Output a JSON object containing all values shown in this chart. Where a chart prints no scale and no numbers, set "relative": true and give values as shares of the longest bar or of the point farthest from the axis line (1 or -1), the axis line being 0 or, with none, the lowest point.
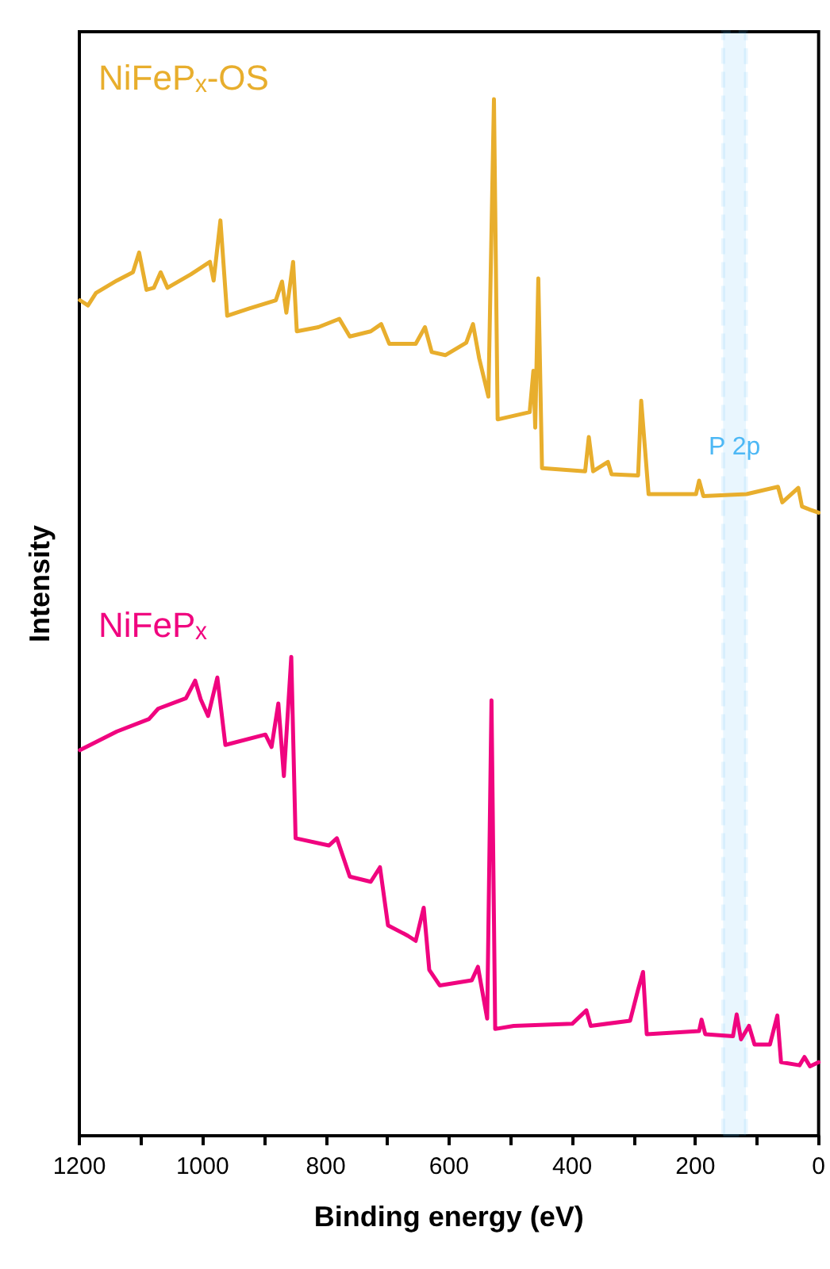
{
  "chart_data": {
    "type": "line",
    "relative": true,
    "xlabel": "Binding energy (eV)",
    "ylabel": "Intensity",
    "xlim": [
      1200,
      0
    ],
    "xticks": [
      1200,
      {
        "value": 1100,
        "label": null
      },
      1000,
      {
        "value": 900,
        "label": null
      },
      800,
      {
        "value": 700,
        "label": null
      },
      600,
      {
        "value": 500,
        "label": null
      },
      400,
      {
        "value": 300,
        "label": null
      },
      200,
      {
        "value": 100,
        "label": null
      },
      0
    ],
    "grid": false,
    "legend": false,
    "marker": "none",
    "line_style": "solid",
    "series": [
      {
        "name": "NiFePₓ-OS",
        "color": "#e8ae2d",
        "x": [
          1199,
          1186,
          1173,
          1139,
          1113,
          1103,
          1091,
          1079,
          1068,
          1057,
          1019,
          988,
          982,
          971,
          960,
          924,
          881,
          871,
          864,
          853,
          847,
          812,
          778,
          761,
          727,
          710,
          697,
          654,
          639,
          628,
          606,
          572,
          561,
          551,
          536,
          527,
          521,
          469,
          463,
          460,
          455,
          449,
          379,
          373,
          366,
          342,
          336,
          293,
          288,
          282,
          276,
          199,
          194,
          187,
          117,
          66,
          59,
          33,
          27,
          14,
          0
        ],
        "values": [
          0.806,
          0.801,
          0.813,
          0.825,
          0.833,
          0.852,
          0.816,
          0.818,
          0.833,
          0.818,
          0.831,
          0.843,
          0.825,
          0.883,
          0.791,
          0.798,
          0.806,
          0.824,
          0.794,
          0.843,
          0.776,
          0.78,
          0.788,
          0.771,
          0.776,
          0.783,
          0.764,
          0.764,
          0.78,
          0.756,
          0.753,
          0.765,
          0.783,
          0.75,
          0.713,
          1.0,
          0.691,
          0.698,
          0.738,
          0.683,
          0.827,
          0.644,
          0.641,
          0.674,
          0.641,
          0.65,
          0.638,
          0.637,
          0.709,
          0.664,
          0.619,
          0.619,
          0.632,
          0.617,
          0.619,
          0.626,
          0.611,
          0.625,
          0.607,
          0.604,
          0.601
        ]
      },
      {
        "name": "NiFePₓ",
        "color": "#f0047f",
        "x": [
          1199,
          1139,
          1087,
          1072,
          1027,
          1012,
          1003,
          991,
          976,
          963,
          898,
          888,
          877,
          868,
          856,
          849,
          795,
          782,
          761,
          727,
          712,
          699,
          667,
          654,
          641,
          632,
          615,
          563,
          553,
          538,
          531,
          525,
          495,
          400,
          377,
          370,
          306,
          293,
          285,
          279,
          194,
          190,
          184,
          139,
          133,
          126,
          113,
          104,
          79,
          67,
          61,
          31,
          23,
          14,
          0
        ],
        "values": [
          0.372,
          0.39,
          0.402,
          0.412,
          0.422,
          0.439,
          0.421,
          0.405,
          0.442,
          0.377,
          0.387,
          0.375,
          0.417,
          0.347,
          0.462,
          0.287,
          0.28,
          0.287,
          0.25,
          0.245,
          0.259,
          0.203,
          0.193,
          0.188,
          0.22,
          0.16,
          0.145,
          0.15,
          0.163,
          0.113,
          0.42,
          0.103,
          0.106,
          0.108,
          0.121,
          0.106,
          0.111,
          0.141,
          0.158,
          0.098,
          0.101,
          0.112,
          0.098,
          0.096,
          0.117,
          0.093,
          0.106,
          0.088,
          0.088,
          0.116,
          0.071,
          0.068,
          0.076,
          0.067,
          0.071
        ]
      }
    ],
    "bands": [
      {
        "axis": "x",
        "from": 155,
        "to": 118,
        "label": "P 2p",
        "color": "#4db8f5"
      }
    ]
  }
}
